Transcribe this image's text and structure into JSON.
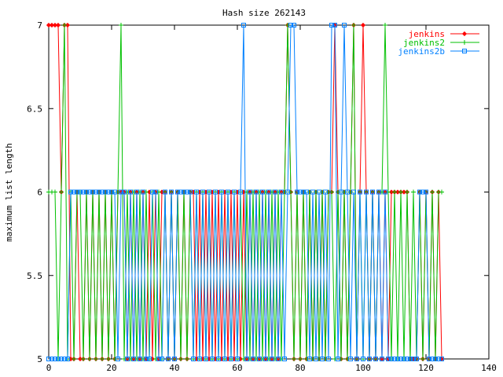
{
  "chart_data": {
    "type": "line",
    "title": "Hash size 262143",
    "xlabel": "",
    "ylabel": "maximum list length",
    "xlim": [
      0,
      140
    ],
    "ylim": [
      5,
      7
    ],
    "xticks": [
      0,
      20,
      40,
      60,
      80,
      100,
      120,
      140
    ],
    "yticks": [
      5,
      5.5,
      6,
      6.5,
      7
    ],
    "grid": false,
    "legend_position": "top-right",
    "series": [
      {
        "name": "jenkins",
        "color": "#ff0000",
        "marker": "diamond",
        "x": [
          0,
          1,
          2,
          3,
          4,
          5,
          6,
          7,
          8,
          9,
          10,
          11,
          12,
          13,
          14,
          15,
          16,
          17,
          18,
          19,
          20,
          21,
          22,
          23,
          24,
          25,
          26,
          27,
          28,
          29,
          30,
          31,
          32,
          33,
          34,
          35,
          36,
          37,
          38,
          39,
          40,
          41,
          42,
          43,
          44,
          45,
          46,
          47,
          48,
          49,
          50,
          51,
          52,
          53,
          54,
          55,
          56,
          57,
          58,
          59,
          60,
          61,
          62,
          63,
          64,
          65,
          66,
          67,
          68,
          69,
          70,
          71,
          72,
          73,
          74,
          75,
          76,
          77,
          78,
          79,
          80,
          81,
          82,
          83,
          84,
          85,
          86,
          87,
          88,
          89,
          90,
          91,
          92,
          93,
          94,
          95,
          96,
          97,
          98,
          99,
          100,
          101,
          102,
          103,
          104,
          105,
          106,
          107,
          108,
          109,
          110,
          111,
          112,
          113,
          114,
          115,
          116,
          117,
          118,
          119,
          120,
          121,
          122,
          123,
          124,
          125
        ],
        "values": [
          7,
          7,
          7,
          7,
          6,
          7,
          7,
          5,
          5,
          6,
          5,
          5,
          6,
          5,
          6,
          5,
          6,
          5,
          6,
          5,
          6,
          5,
          6,
          6,
          6,
          5,
          6,
          5,
          6,
          5,
          6,
          5,
          6,
          5,
          6,
          5,
          6,
          6,
          5,
          6,
          5,
          6,
          5,
          6,
          5,
          6,
          6,
          5,
          6,
          5,
          6,
          5,
          6,
          5,
          6,
          5,
          6,
          5,
          6,
          5,
          6,
          5,
          6,
          5,
          6,
          5,
          6,
          5,
          6,
          5,
          6,
          5,
          6,
          5,
          6,
          6,
          7,
          6,
          5,
          6,
          5,
          6,
          5,
          6,
          5,
          6,
          5,
          6,
          5,
          6,
          6,
          7,
          6,
          5,
          6,
          5,
          6,
          7,
          5,
          6,
          7,
          6,
          5,
          6,
          5,
          6,
          5,
          6,
          5,
          6,
          6,
          6,
          6,
          6,
          6,
          5,
          5,
          5,
          6,
          5,
          6,
          5,
          6,
          5,
          6,
          5
        ]
      },
      {
        "name": "jenkins2",
        "color": "#00c000",
        "marker": "plus",
        "x": [
          0,
          1,
          2,
          3,
          4,
          5,
          6,
          7,
          8,
          9,
          10,
          11,
          12,
          13,
          14,
          15,
          16,
          17,
          18,
          19,
          20,
          21,
          22,
          23,
          24,
          25,
          26,
          27,
          28,
          29,
          30,
          31,
          32,
          33,
          34,
          35,
          36,
          37,
          38,
          39,
          40,
          41,
          42,
          43,
          44,
          45,
          46,
          47,
          48,
          49,
          50,
          51,
          52,
          53,
          54,
          55,
          56,
          57,
          58,
          59,
          60,
          61,
          62,
          63,
          64,
          65,
          66,
          67,
          68,
          69,
          70,
          71,
          72,
          73,
          74,
          75,
          76,
          77,
          78,
          79,
          80,
          81,
          82,
          83,
          84,
          85,
          86,
          87,
          88,
          89,
          90,
          91,
          92,
          93,
          94,
          95,
          96,
          97,
          98,
          99,
          100,
          101,
          102,
          103,
          104,
          105,
          106,
          107,
          108,
          109,
          110,
          111,
          112,
          113,
          114,
          115,
          116,
          117,
          118,
          119,
          120,
          121,
          122,
          123,
          124,
          125
        ],
        "values": [
          6,
          6,
          6,
          5,
          6,
          7,
          5,
          6,
          5,
          6,
          6,
          5,
          6,
          5,
          6,
          5,
          6,
          5,
          6,
          5,
          6,
          5,
          6,
          7,
          5,
          6,
          5,
          6,
          5,
          6,
          5,
          6,
          5,
          6,
          5,
          6,
          5,
          6,
          5,
          6,
          5,
          6,
          5,
          6,
          5,
          6,
          5,
          6,
          5,
          6,
          5,
          6,
          5,
          6,
          5,
          6,
          5,
          6,
          5,
          6,
          5,
          6,
          5,
          6,
          5,
          6,
          5,
          6,
          5,
          6,
          5,
          6,
          5,
          6,
          5,
          6,
          7,
          6,
          5,
          6,
          5,
          6,
          5,
          6,
          5,
          6,
          5,
          6,
          5,
          6,
          6,
          5,
          6,
          5,
          6,
          5,
          6,
          7,
          5,
          6,
          5,
          6,
          5,
          6,
          5,
          6,
          6,
          7,
          6,
          5,
          6,
          5,
          6,
          5,
          6,
          5,
          6,
          5,
          6,
          5,
          6,
          5,
          6,
          5,
          6,
          6
        ]
      },
      {
        "name": "jenkins2b",
        "color": "#0080ff",
        "marker": "square",
        "x": [
          0,
          1,
          2,
          3,
          4,
          5,
          6,
          7,
          8,
          9,
          10,
          11,
          12,
          13,
          14,
          15,
          16,
          17,
          18,
          19,
          20,
          21,
          22,
          23,
          24,
          25,
          26,
          27,
          28,
          29,
          30,
          31,
          32,
          33,
          34,
          35,
          36,
          37,
          38,
          39,
          40,
          41,
          42,
          43,
          44,
          45,
          46,
          47,
          48,
          49,
          50,
          51,
          52,
          53,
          54,
          55,
          56,
          57,
          58,
          59,
          60,
          61,
          62,
          63,
          64,
          65,
          66,
          67,
          68,
          69,
          70,
          71,
          72,
          73,
          74,
          75,
          76,
          77,
          78,
          79,
          80,
          81,
          82,
          83,
          84,
          85,
          86,
          87,
          88,
          89,
          90,
          91,
          92,
          93,
          94,
          95,
          96,
          97,
          98,
          99,
          100,
          101,
          102,
          103,
          104,
          105,
          106,
          107,
          108,
          109,
          110,
          111,
          112,
          113,
          114,
          115,
          116,
          117,
          118,
          119,
          120,
          121,
          122,
          123,
          124,
          125
        ],
        "values": [
          5,
          5,
          5,
          5,
          5,
          5,
          5,
          6,
          6,
          6,
          6,
          6,
          6,
          6,
          6,
          6,
          6,
          6,
          6,
          6,
          6,
          6,
          5,
          6,
          6,
          5,
          6,
          5,
          6,
          5,
          6,
          5,
          5,
          6,
          6,
          5,
          5,
          6,
          5,
          6,
          5,
          6,
          6,
          6,
          6,
          6,
          5,
          6,
          5,
          6,
          5,
          6,
          5,
          6,
          5,
          6,
          5,
          6,
          5,
          6,
          5,
          6,
          7,
          5,
          6,
          5,
          6,
          5,
          6,
          5,
          6,
          5,
          6,
          5,
          6,
          5,
          6,
          7,
          7,
          6,
          6,
          6,
          6,
          5,
          6,
          5,
          6,
          5,
          6,
          5,
          7,
          7,
          5,
          6,
          7,
          6,
          5,
          6,
          5,
          6,
          5,
          6,
          5,
          6,
          5,
          6,
          5,
          6,
          5,
          5,
          5,
          5,
          5,
          5,
          5,
          5,
          5,
          5,
          6,
          6,
          6,
          5,
          5,
          5,
          5,
          5
        ]
      }
    ]
  }
}
